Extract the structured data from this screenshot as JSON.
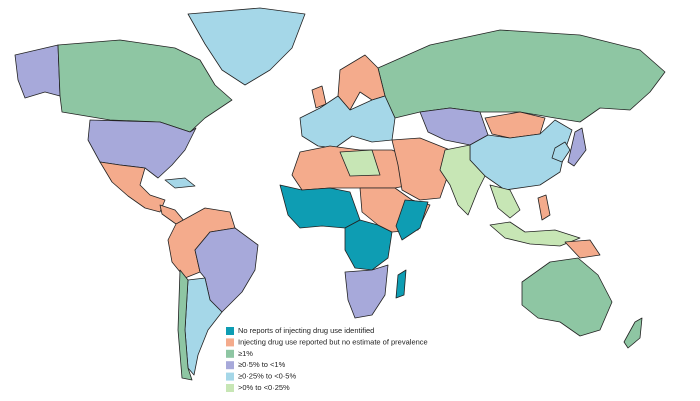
{
  "legend": {
    "items": [
      {
        "label": "No reports of injecting drug use identified",
        "color": "#0e9db3"
      },
      {
        "label": "Injecting drug use reported but no estimate of prevalence",
        "color": "#f4ab8c"
      },
      {
        "label": "≥1%",
        "color": "#8ec6a3"
      },
      {
        "label": "≥0·5% to <1%",
        "color": "#a7a9da"
      },
      {
        "label": "≥0·25% to <0·5%",
        "color": "#a5d7e8"
      },
      {
        "label": ">0% to <0·25%",
        "color": "#c7e6b5"
      }
    ]
  }
}
